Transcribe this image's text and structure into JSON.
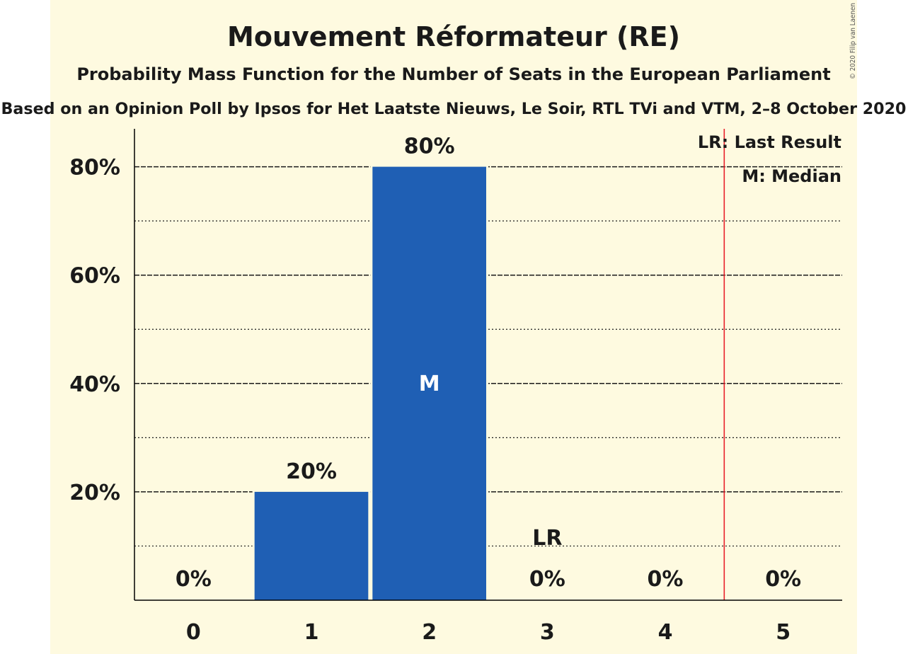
{
  "chart_data": {
    "type": "bar",
    "title": "Mouvement Réformateur (RE)",
    "subtitle": "Probability Mass Function for the Number of Seats in the European Parliament",
    "source": "Based on an Opinion Poll by Ipsos for Het Laatste Nieuws, Le Soir, RTL TVi and VTM, 2–8 October 2020",
    "copyright": "© 2020 Filip van Laenen",
    "categories": [
      "0",
      "1",
      "2",
      "3",
      "4",
      "5"
    ],
    "values": [
      0,
      20,
      80,
      0,
      0,
      0
    ],
    "data_labels": [
      "0%",
      "20%",
      "80%",
      "0%",
      "0%",
      "0%"
    ],
    "ylim": [
      0,
      87
    ],
    "y_ticks": [
      20,
      40,
      60,
      80
    ],
    "y_tick_labels": [
      "20%",
      "40%",
      "60%",
      "80%"
    ],
    "minor_gridlines": [
      10,
      30,
      50,
      70
    ],
    "median_category": "2",
    "median_marker": "M",
    "last_result_category": "3",
    "last_result_marker": "LR",
    "last_result_line_position": 4.5,
    "legend": [
      "LR: Last Result",
      "M: Median"
    ],
    "legend_placement": "top-right",
    "colors": {
      "bar": "#1F5FB4",
      "panel_background": "#FEFAE0",
      "last_result_line": "#E8202A",
      "gridline": "#1a1a1a",
      "text": "#1a1a1a"
    }
  }
}
